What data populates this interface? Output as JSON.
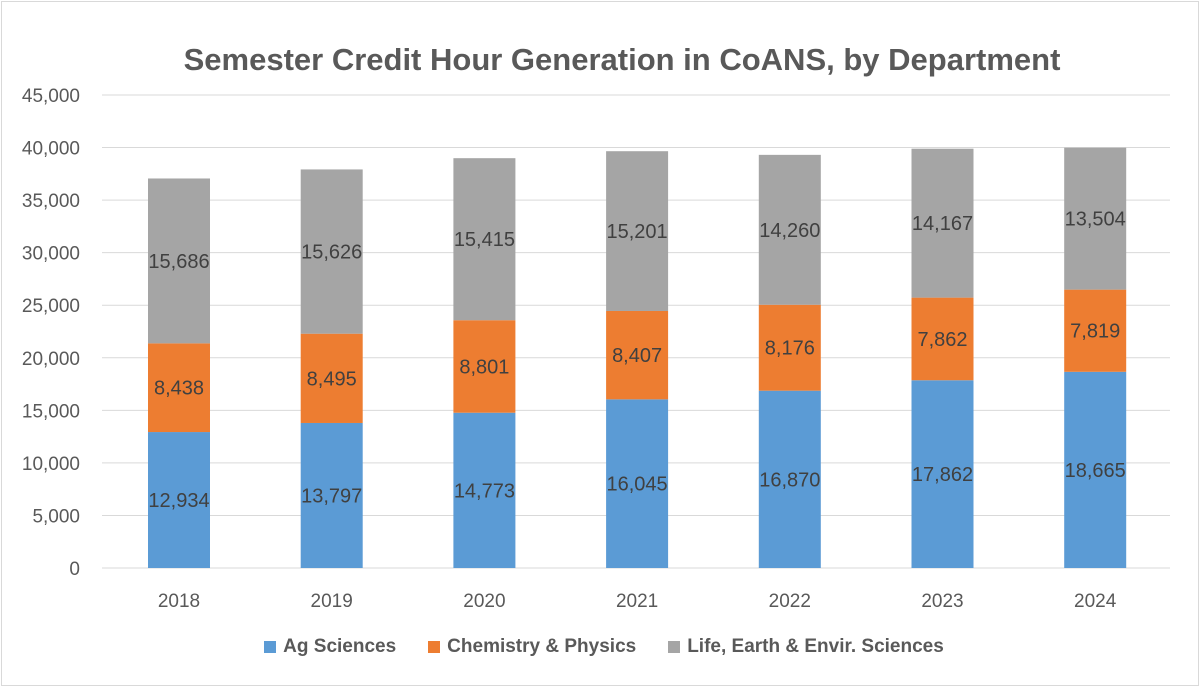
{
  "chart_data": {
    "type": "bar",
    "stacked": true,
    "title": "Semester Credit Hour Generation in CoANS, by Department",
    "xlabel": "",
    "ylabel": "",
    "categories": [
      "2018",
      "2019",
      "2020",
      "2021",
      "2022",
      "2023",
      "2024"
    ],
    "series": [
      {
        "name": "Ag Sciences",
        "color": "#5b9bd5",
        "values": [
          12934,
          13797,
          14773,
          16045,
          16870,
          17862,
          18665
        ]
      },
      {
        "name": "Chemistry & Physics",
        "color": "#ed7d31",
        "values": [
          8438,
          8495,
          8801,
          8407,
          8176,
          7862,
          7819
        ]
      },
      {
        "name": "Life, Earth & Envir. Sciences",
        "color": "#a5a5a5",
        "values": [
          15686,
          15626,
          15415,
          15201,
          14260,
          14167,
          13504
        ]
      }
    ],
    "ylim": [
      0,
      45000
    ],
    "yticks": [
      0,
      5000,
      10000,
      15000,
      20000,
      25000,
      30000,
      35000,
      40000,
      45000
    ],
    "ytick_labels": [
      "0",
      "5,000",
      "10,000",
      "15,000",
      "20,000",
      "25,000",
      "30,000",
      "35,000",
      "40,000",
      "45,000"
    ],
    "data_labels": [
      [
        "12,934",
        "13,797",
        "14,773",
        "16,045",
        "16,870",
        "17,862",
        "18,665"
      ],
      [
        "8,438",
        "8,495",
        "8,801",
        "8,407",
        "8,176",
        "7,862",
        "7,819"
      ],
      [
        "15,686",
        "15,626",
        "15,415",
        "15,201",
        "14,260",
        "14,167",
        "13,504"
      ]
    ],
    "grid": true,
    "legend_position": "bottom"
  }
}
